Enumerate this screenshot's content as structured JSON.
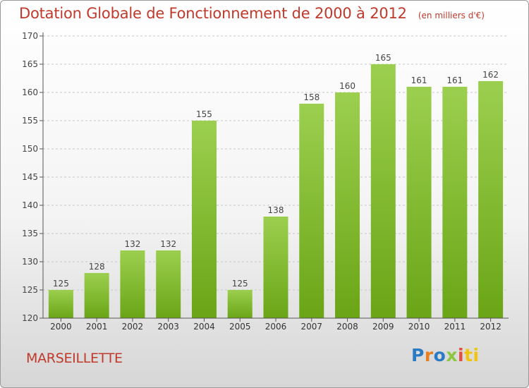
{
  "header": {
    "title": "Dotation Globale de Fonctionnement de 2000 à 2012",
    "unit": "(en milliers d'€)"
  },
  "footer": {
    "commune": "MARSEILLETTE",
    "logo_letters": [
      "P",
      "r",
      "o",
      "x",
      "i",
      "ti"
    ]
  },
  "colors": {
    "title": "#c0392b",
    "bar_light": "#9ccf4f",
    "bar_dark": "#6aa516",
    "axis": "#555555",
    "grid": "#c8c8c8"
  },
  "chart_data": {
    "type": "bar",
    "title": "Dotation Globale de Fonctionnement de 2000 à 2012",
    "subtitle": "(en milliers d'€)",
    "xlabel": "",
    "ylabel": "",
    "categories": [
      "2000",
      "2001",
      "2002",
      "2003",
      "2004",
      "2005",
      "2006",
      "2007",
      "2008",
      "2009",
      "2010",
      "2011",
      "2012"
    ],
    "values": [
      125,
      128,
      132,
      132,
      155,
      125,
      138,
      158,
      160,
      165,
      161,
      161,
      162
    ],
    "ylim": [
      120,
      170
    ],
    "yticks": [
      120,
      125,
      130,
      135,
      140,
      145,
      150,
      155,
      160,
      165,
      170
    ],
    "grid": "horizontal dashed",
    "legend": "none"
  }
}
